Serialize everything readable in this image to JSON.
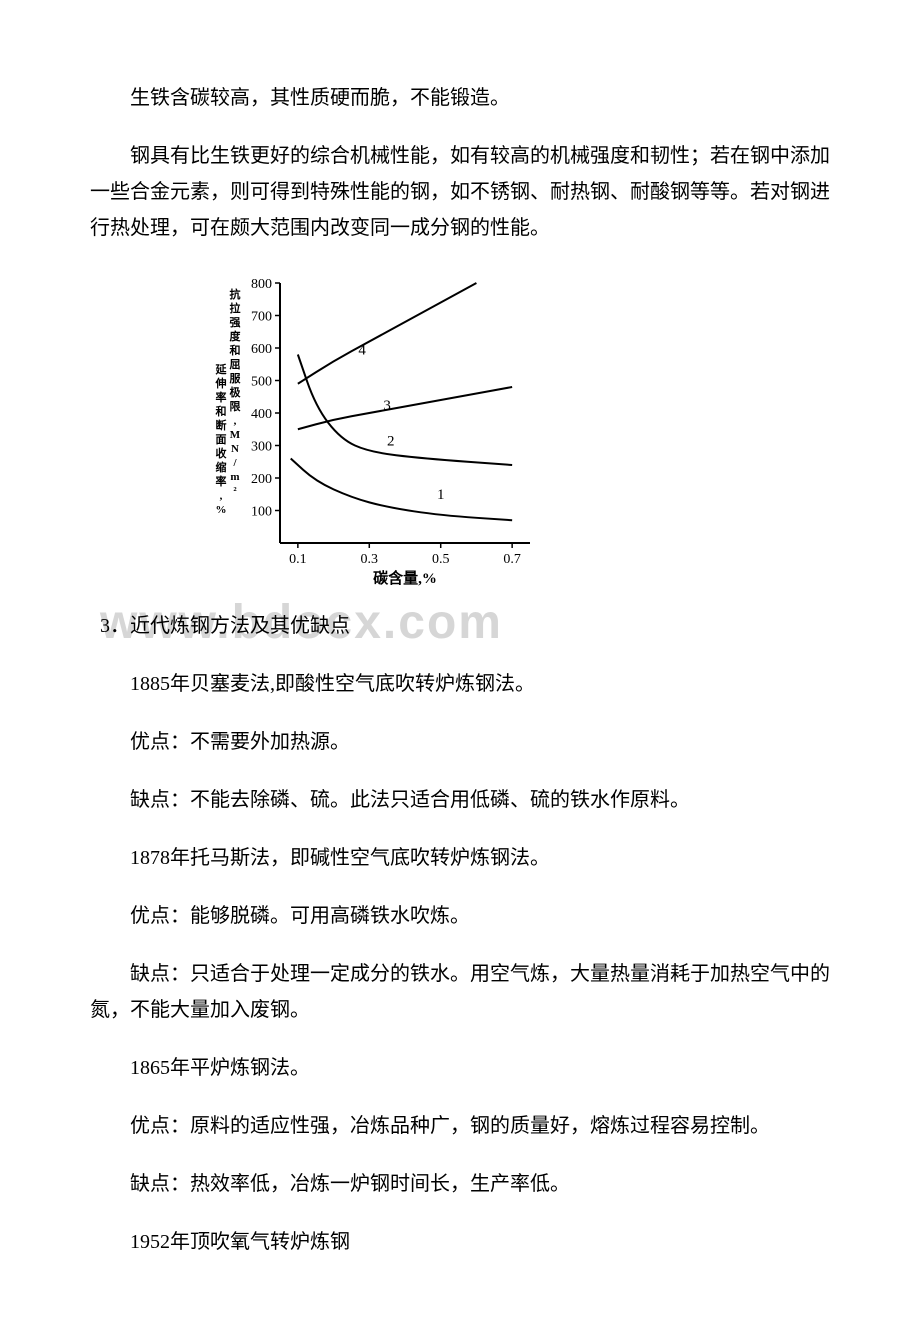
{
  "paragraphs": {
    "p1": "生铁含碳较高，其性质硬而脆，不能锻造。",
    "p2": "钢具有比生铁更好的综合机械性能，如有较高的机械强度和韧性；若在钢中添加一些合金元素，则可得到特殊性能的钢，如不锈钢、耐热钢、耐酸钢等等。若对钢进行热处理，可在颇大范围内改变同一成分钢的性能。"
  },
  "chart": {
    "type": "line",
    "x_label": "碳含量,%",
    "y_label": "抗拉强度和屈服极限,MN/m² 延伸率和断面收缩率,%",
    "xlim": [
      0.05,
      0.75
    ],
    "ylim": [
      0,
      800
    ],
    "xticks": [
      0.1,
      0.3,
      0.5,
      0.7
    ],
    "yticks": [
      100,
      200,
      300,
      400,
      500,
      600,
      700,
      800
    ],
    "series": [
      {
        "label": "1",
        "points": [
          [
            0.08,
            260
          ],
          [
            0.15,
            190
          ],
          [
            0.25,
            140
          ],
          [
            0.35,
            110
          ],
          [
            0.5,
            85
          ],
          [
            0.7,
            70
          ]
        ]
      },
      {
        "label": "2",
        "points": [
          [
            0.1,
            580
          ],
          [
            0.15,
            420
          ],
          [
            0.22,
            320
          ],
          [
            0.3,
            280
          ],
          [
            0.45,
            260
          ],
          [
            0.7,
            240
          ]
        ]
      },
      {
        "label": "3",
        "points": [
          [
            0.1,
            350
          ],
          [
            0.2,
            380
          ],
          [
            0.3,
            400
          ],
          [
            0.4,
            420
          ],
          [
            0.55,
            450
          ],
          [
            0.7,
            480
          ]
        ]
      },
      {
        "label": "4",
        "points": [
          [
            0.1,
            490
          ],
          [
            0.2,
            560
          ],
          [
            0.3,
            620
          ],
          [
            0.4,
            680
          ],
          [
            0.5,
            740
          ],
          [
            0.6,
            800
          ]
        ]
      }
    ],
    "line_color": "#000000",
    "line_width": 2,
    "axis_color": "#000000",
    "tick_fontsize": 14,
    "label_fontsize": 13,
    "background_color": "#ffffff",
    "series_label_positions": {
      "1": [
        0.5,
        135
      ],
      "2": [
        0.36,
        300
      ],
      "3": [
        0.35,
        410
      ],
      "4": [
        0.28,
        580
      ]
    }
  },
  "section3": {
    "heading": "3．近代炼钢方法及其优缺点",
    "items": {
      "i1": "1885年贝塞麦法,即酸性空气底吹转炉炼钢法。",
      "i2": "优点：不需要外加热源。",
      "i3": "缺点：不能去除磷、硫。此法只适合用低磷、硫的铁水作原料。",
      "i4": "1878年托马斯法，即碱性空气底吹转炉炼钢法。",
      "i5": "优点：能够脱磷。可用高磷铁水吹炼。",
      "i6": "缺点：只适合于处理一定成分的铁水。用空气炼，大量热量消耗于加热空气中的氮，不能大量加入废钢。",
      "i7": "1865年平炉炼钢法。",
      "i8": "优点：原料的适应性强，冶炼品种广，钢的质量好，熔炼过程容易控制。",
      "i9": "缺点：热效率低，冶炼一炉钢时间长，生产率低。",
      "i10": "1952年顶吹氧气转炉炼钢"
    }
  },
  "watermark": "www.bdocx.com"
}
